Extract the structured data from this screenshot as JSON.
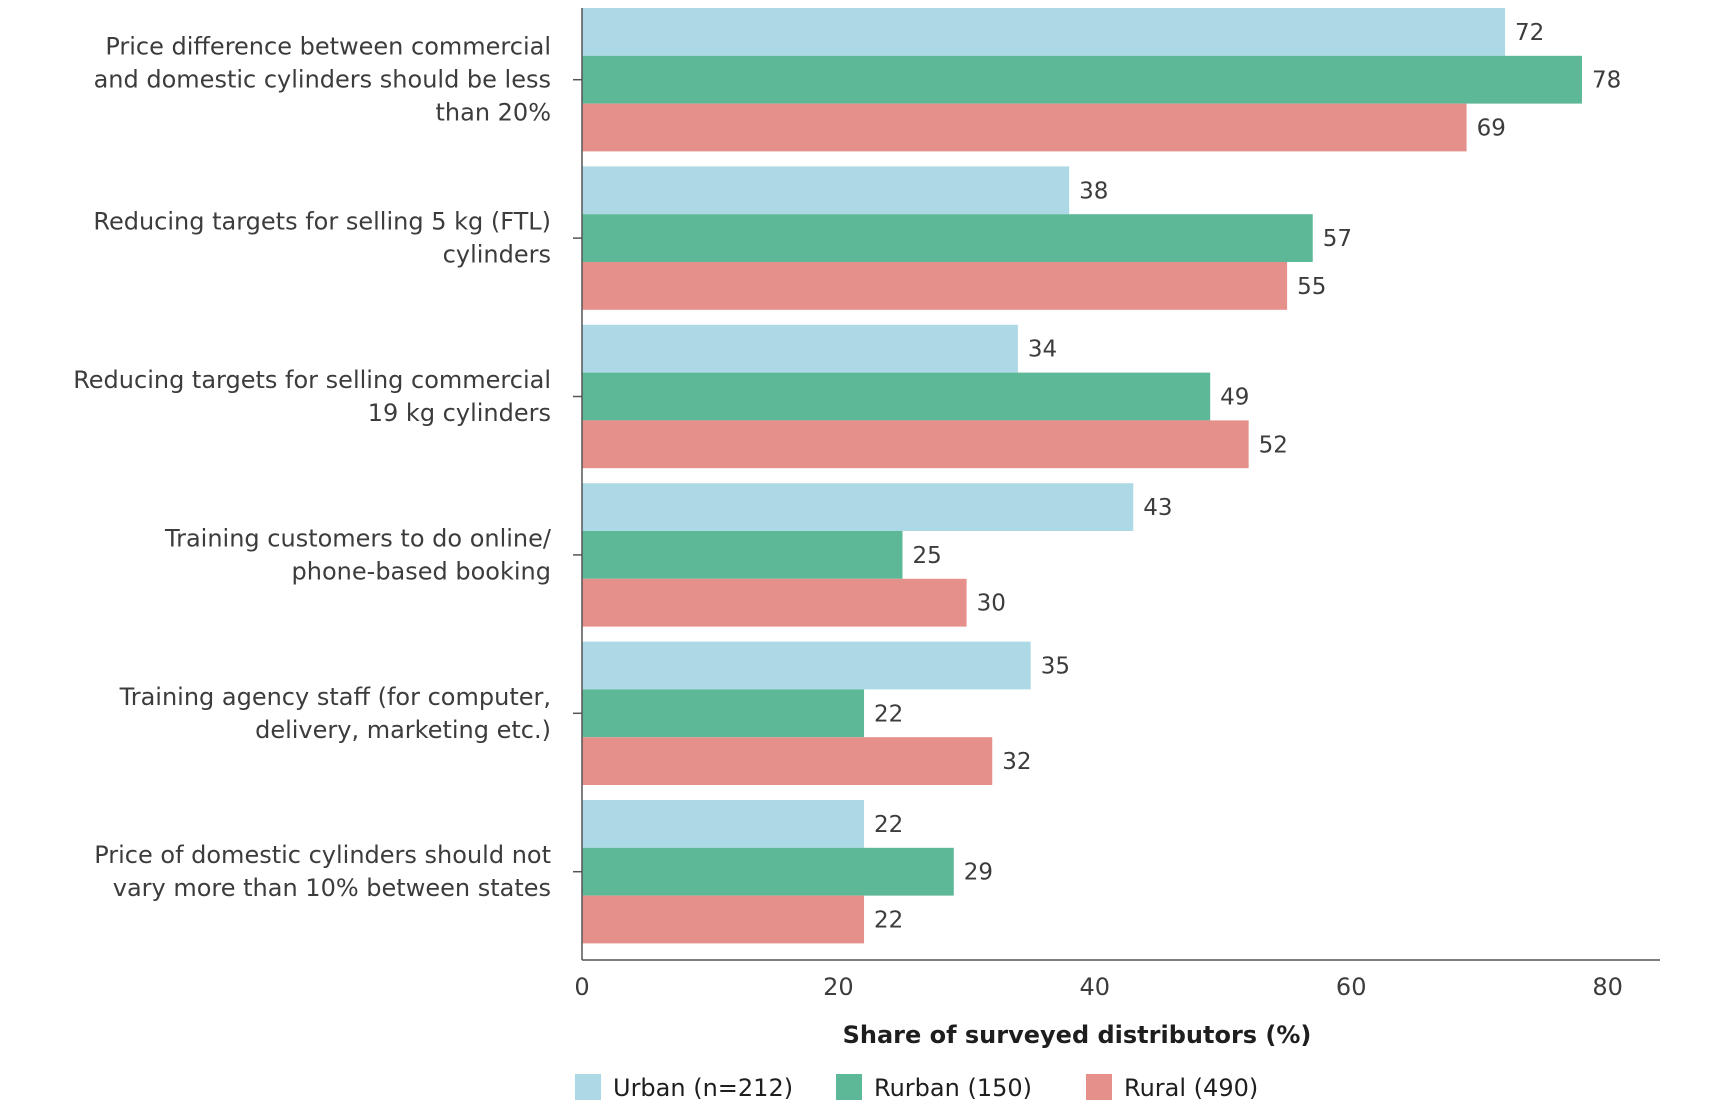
{
  "chart_data": {
    "type": "bar",
    "orientation": "horizontal",
    "categories": [
      [
        "Price difference between commercial",
        "and domestic cylinders should be less",
        "than 20%"
      ],
      [
        "Reducing targets for selling 5 kg (FTL)",
        "cylinders"
      ],
      [
        "Reducing targets for selling commercial",
        "19 kg cylinders"
      ],
      [
        "Training customers to do online/",
        "phone-based booking"
      ],
      [
        "Training agency staff (for computer,",
        "delivery, marketing etc.)"
      ],
      [
        "Price of domestic cylinders should not",
        "vary more than 10% between states"
      ]
    ],
    "series": [
      {
        "name": "Urban (n=212)",
        "color": "#add8e6",
        "values": [
          72,
          38,
          34,
          43,
          35,
          22
        ]
      },
      {
        "name": "Rurban (150)",
        "color": "#5cb896",
        "values": [
          78,
          57,
          49,
          25,
          22,
          29
        ]
      },
      {
        "name": "Rural (490)",
        "color": "#e6908c",
        "values": [
          69,
          55,
          52,
          30,
          32,
          22
        ]
      }
    ],
    "xlabel": "Share of surveyed distributors (%)",
    "xlim": [
      0,
      84
    ],
    "xticks": [
      0,
      20,
      40,
      60,
      80
    ],
    "grid": false,
    "legend_position": "bottom"
  }
}
